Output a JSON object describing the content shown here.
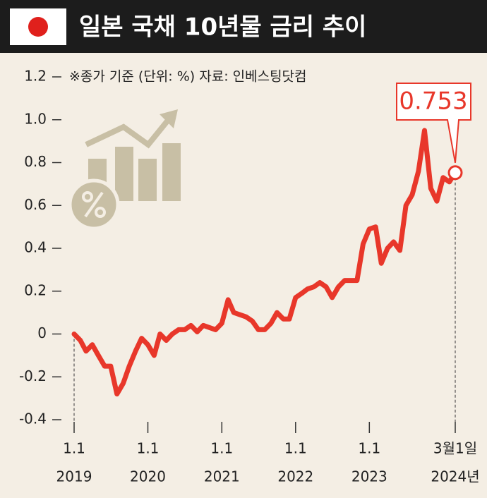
{
  "chart_data": {
    "type": "line",
    "title": "일본 국채 10년물 금리 추이",
    "annotation": "※종가 기준 (단위: %) 자료: 인베스팅닷컴",
    "x": [
      "2019-01-01",
      "2019-02-01",
      "2019-03-01",
      "2019-04-01",
      "2019-05-01",
      "2019-06-01",
      "2019-07-01",
      "2019-08-01",
      "2019-09-01",
      "2019-10-01",
      "2019-11-01",
      "2019-12-01",
      "2020-01-01",
      "2020-02-01",
      "2020-03-01",
      "2020-04-01",
      "2020-05-01",
      "2020-06-01",
      "2020-07-01",
      "2020-08-01",
      "2020-09-01",
      "2020-10-01",
      "2020-11-01",
      "2020-12-01",
      "2021-01-01",
      "2021-02-01",
      "2021-03-01",
      "2021-04-01",
      "2021-05-01",
      "2021-06-01",
      "2021-07-01",
      "2021-08-01",
      "2021-09-01",
      "2021-10-01",
      "2021-11-01",
      "2021-12-01",
      "2022-01-01",
      "2022-02-01",
      "2022-03-01",
      "2022-04-01",
      "2022-05-01",
      "2022-06-01",
      "2022-07-01",
      "2022-08-01",
      "2022-09-01",
      "2022-10-01",
      "2022-11-01",
      "2022-12-01",
      "2023-01-01",
      "2023-02-01",
      "2023-03-01",
      "2023-04-01",
      "2023-05-01",
      "2023-06-01",
      "2023-07-01",
      "2023-08-01",
      "2023-09-01",
      "2023-10-01",
      "2023-11-01",
      "2023-12-01",
      "2024-01-01",
      "2024-02-01",
      "2024-03-01"
    ],
    "series": [
      {
        "name": "일본 국채 10년물 금리",
        "color": "#e8372a",
        "values": [
          0.0,
          -0.03,
          -0.08,
          -0.05,
          -0.1,
          -0.15,
          -0.15,
          -0.28,
          -0.23,
          -0.15,
          -0.08,
          -0.02,
          -0.05,
          -0.1,
          0.0,
          -0.03,
          0.0,
          0.02,
          0.02,
          0.04,
          0.01,
          0.04,
          0.03,
          0.02,
          0.05,
          0.16,
          0.1,
          0.09,
          0.08,
          0.06,
          0.02,
          0.02,
          0.05,
          0.1,
          0.07,
          0.07,
          0.17,
          0.19,
          0.21,
          0.22,
          0.24,
          0.22,
          0.17,
          0.22,
          0.25,
          0.25,
          0.25,
          0.42,
          0.49,
          0.5,
          0.33,
          0.4,
          0.43,
          0.39,
          0.6,
          0.65,
          0.76,
          0.95,
          0.68,
          0.62,
          0.73,
          0.71,
          0.753
        ]
      }
    ],
    "xlim": [
      "2019-01-01",
      "2024-03-01"
    ],
    "xticks": [
      {
        "value": "2019-01-01",
        "label": "1.1",
        "year_label": "2019"
      },
      {
        "value": "2020-01-01",
        "label": "1.1",
        "year_label": "2020"
      },
      {
        "value": "2021-01-01",
        "label": "1.1",
        "year_label": "2021"
      },
      {
        "value": "2022-01-01",
        "label": "1.1",
        "year_label": "2022"
      },
      {
        "value": "2023-01-01",
        "label": "1.1",
        "year_label": "2023"
      },
      {
        "value": "2024-03-01",
        "label": "3월1일",
        "year_label": "2024년"
      }
    ],
    "ylim": [
      -0.4,
      1.2
    ],
    "yticks": [
      -0.4,
      -0.2,
      0,
      0.2,
      0.4,
      0.6,
      0.8,
      {
        "value": 1,
        "label": "1.0"
      },
      1.2
    ]
  }
}
